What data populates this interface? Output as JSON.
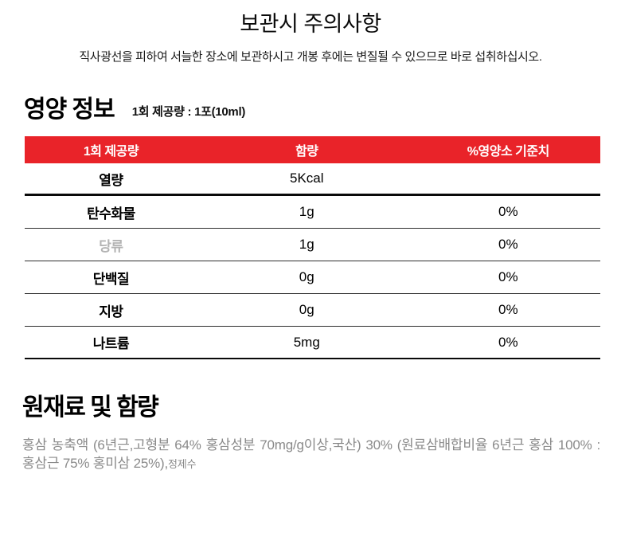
{
  "storage": {
    "title": "보관시 주의사항",
    "description": "직사광선을 피하여 서늘한 장소에 보관하시고 개봉 후에는 변질될 수 있으므로 바로 섭취하십시오."
  },
  "nutrition": {
    "section_title": "영양 정보",
    "serving_info": "1회 제공량 : 1포(10ml)",
    "table": {
      "headers": [
        "1회 제공량",
        "함량",
        "%영양소 기준치"
      ],
      "rows": [
        {
          "label": "열량",
          "amount": "5Kcal",
          "percent": ""
        },
        {
          "label": "탄수화물",
          "amount": "1g",
          "percent": "0%"
        },
        {
          "label": "당류",
          "amount": "1g",
          "percent": "0%"
        },
        {
          "label": "단백질",
          "amount": "0g",
          "percent": "0%"
        },
        {
          "label": "지방",
          "amount": "0g",
          "percent": "0%"
        },
        {
          "label": "나트륨",
          "amount": "5mg",
          "percent": "0%"
        }
      ]
    }
  },
  "ingredients": {
    "section_title": "원재료 및 함량",
    "text": "홍삼 농축액 (6년근,고형분 64% 홍삼성분 70mg/g이상,국산) 30% (원료삼배합비율 6년근 홍삼 100% : 홍삼근 75% 홍미삼 25%),",
    "text_small": "정제수"
  },
  "colors": {
    "header_red": "#E92329",
    "muted_label": "#B3B3B3",
    "ingredient_text": "#8A8A8A"
  }
}
